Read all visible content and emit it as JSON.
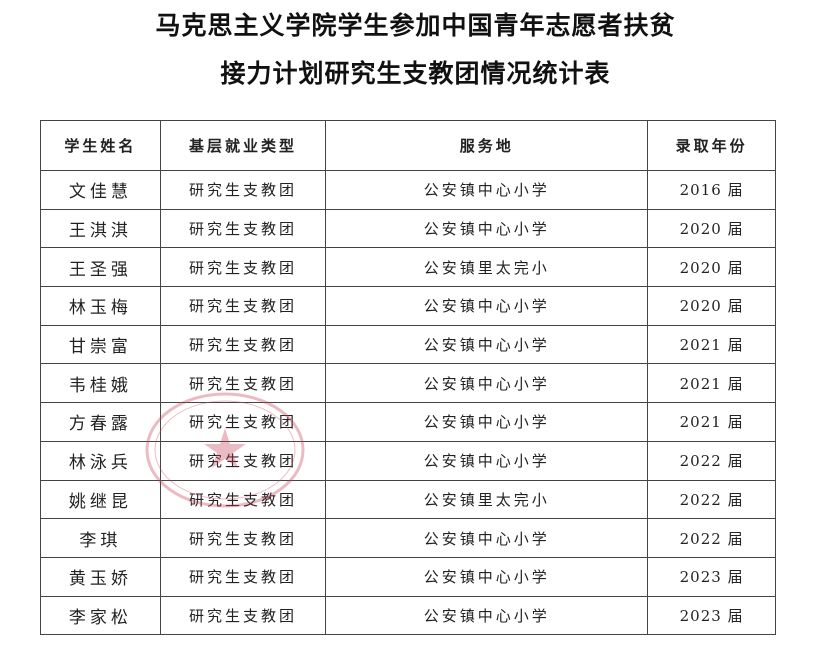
{
  "title": {
    "line1": "马克思主义学院学生参加中国青年志愿者扶贫",
    "line2": "接力计划研究生支教团情况统计表"
  },
  "table": {
    "headers": [
      "学生姓名",
      "基层就业类型",
      "服务地",
      "录取年份"
    ],
    "rows": [
      {
        "name": "文佳慧",
        "type": "研究生支教团",
        "place": "公安镇中心小学",
        "year": "2016 届"
      },
      {
        "name": "王淇淇",
        "type": "研究生支教团",
        "place": "公安镇中心小学",
        "year": "2020 届"
      },
      {
        "name": "王圣强",
        "type": "研究生支教团",
        "place": "公安镇里太完小",
        "year": "2020 届"
      },
      {
        "name": "林玉梅",
        "type": "研究生支教团",
        "place": "公安镇中心小学",
        "year": "2020 届"
      },
      {
        "name": "甘崇富",
        "type": "研究生支教团",
        "place": "公安镇中心小学",
        "year": "2021 届"
      },
      {
        "name": "韦桂娥",
        "type": "研究生支教团",
        "place": "公安镇中心小学",
        "year": "2021 届"
      },
      {
        "name": "方春露",
        "type": "研究生支教团",
        "place": "公安镇中心小学",
        "year": "2021 届"
      },
      {
        "name": "林泳兵",
        "type": "研究生支教团",
        "place": "公安镇中心小学",
        "year": "2022 届"
      },
      {
        "name": "姚继昆",
        "type": "研究生支教团",
        "place": "公安镇里太完小",
        "year": "2022 届"
      },
      {
        "name": "李琪",
        "type": "研究生支教团",
        "place": "公安镇中心小学",
        "year": "2022 届"
      },
      {
        "name": "黄玉娇",
        "type": "研究生支教团",
        "place": "公安镇中心小学",
        "year": "2023 届"
      },
      {
        "name": "李家松",
        "type": "研究生支教团",
        "place": "公安镇中心小学",
        "year": "2023 届"
      }
    ]
  },
  "stamp": {
    "color": "#c8405a"
  }
}
